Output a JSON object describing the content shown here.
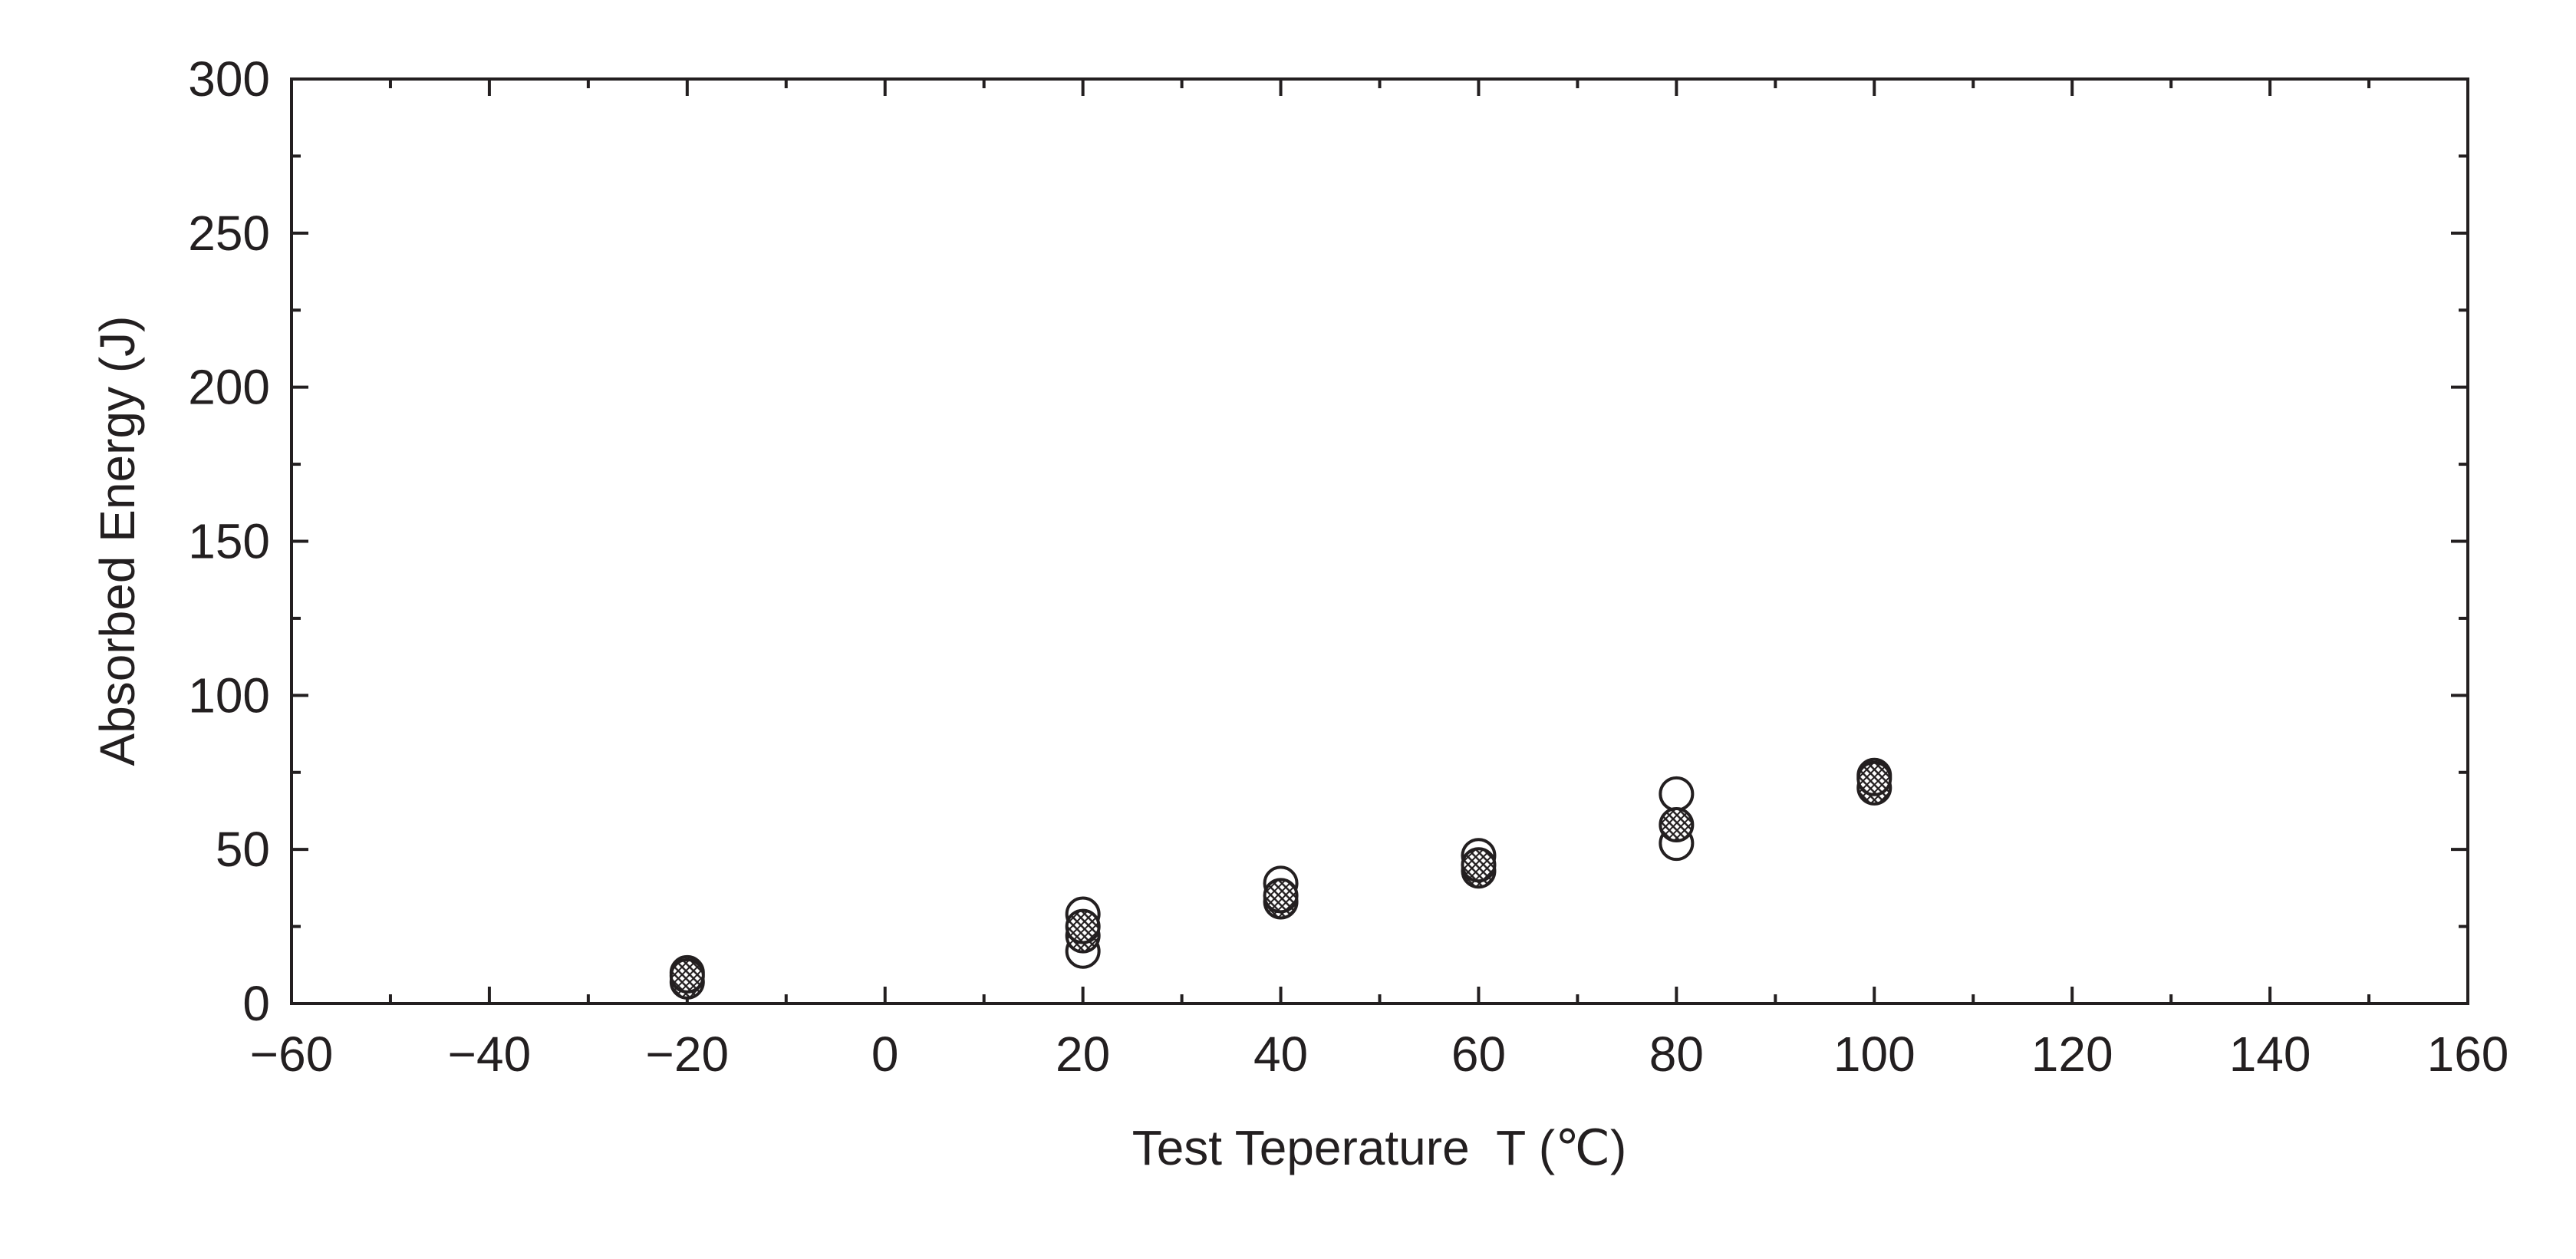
{
  "chart_data": {
    "type": "scatter",
    "title": "",
    "xlabel": "Test Teperature  T (℃)",
    "ylabel": "Absorbed Energy (J)",
    "xlim": [
      -60,
      160
    ],
    "ylim": [
      0,
      300
    ],
    "x_ticks": [
      "−60",
      "−40",
      "−20",
      "0",
      "20",
      "40",
      "60",
      "80",
      "100",
      "120",
      "140",
      "160"
    ],
    "y_ticks": [
      "0",
      "50",
      "100",
      "150",
      "200",
      "250",
      "300"
    ],
    "x_tick_values": [
      -60,
      -40,
      -20,
      0,
      20,
      40,
      60,
      80,
      100,
      120,
      140,
      160
    ],
    "y_tick_values": [
      0,
      50,
      100,
      150,
      200,
      250,
      300
    ],
    "minor_tick_step_x": 10,
    "minor_tick_step_y": 25,
    "grid": false,
    "series": [
      {
        "marker": "open-circle",
        "points": [
          {
            "x": -20,
            "y": 10
          },
          {
            "x": 20,
            "y": 29
          },
          {
            "x": 20,
            "y": 17
          },
          {
            "x": 40,
            "y": 39
          },
          {
            "x": 60,
            "y": 48
          },
          {
            "x": 80,
            "y": 68
          },
          {
            "x": 80,
            "y": 52
          },
          {
            "x": 100,
            "y": 74
          }
        ]
      },
      {
        "marker": "hatched-circle",
        "points": [
          {
            "x": -20,
            "y": 7
          },
          {
            "x": -20,
            "y": 9
          },
          {
            "x": 20,
            "y": 22
          },
          {
            "x": 20,
            "y": 25
          },
          {
            "x": 40,
            "y": 33
          },
          {
            "x": 40,
            "y": 35
          },
          {
            "x": 60,
            "y": 43
          },
          {
            "x": 60,
            "y": 45
          },
          {
            "x": 80,
            "y": 58
          },
          {
            "x": 100,
            "y": 70
          },
          {
            "x": 100,
            "y": 73
          }
        ]
      }
    ]
  }
}
